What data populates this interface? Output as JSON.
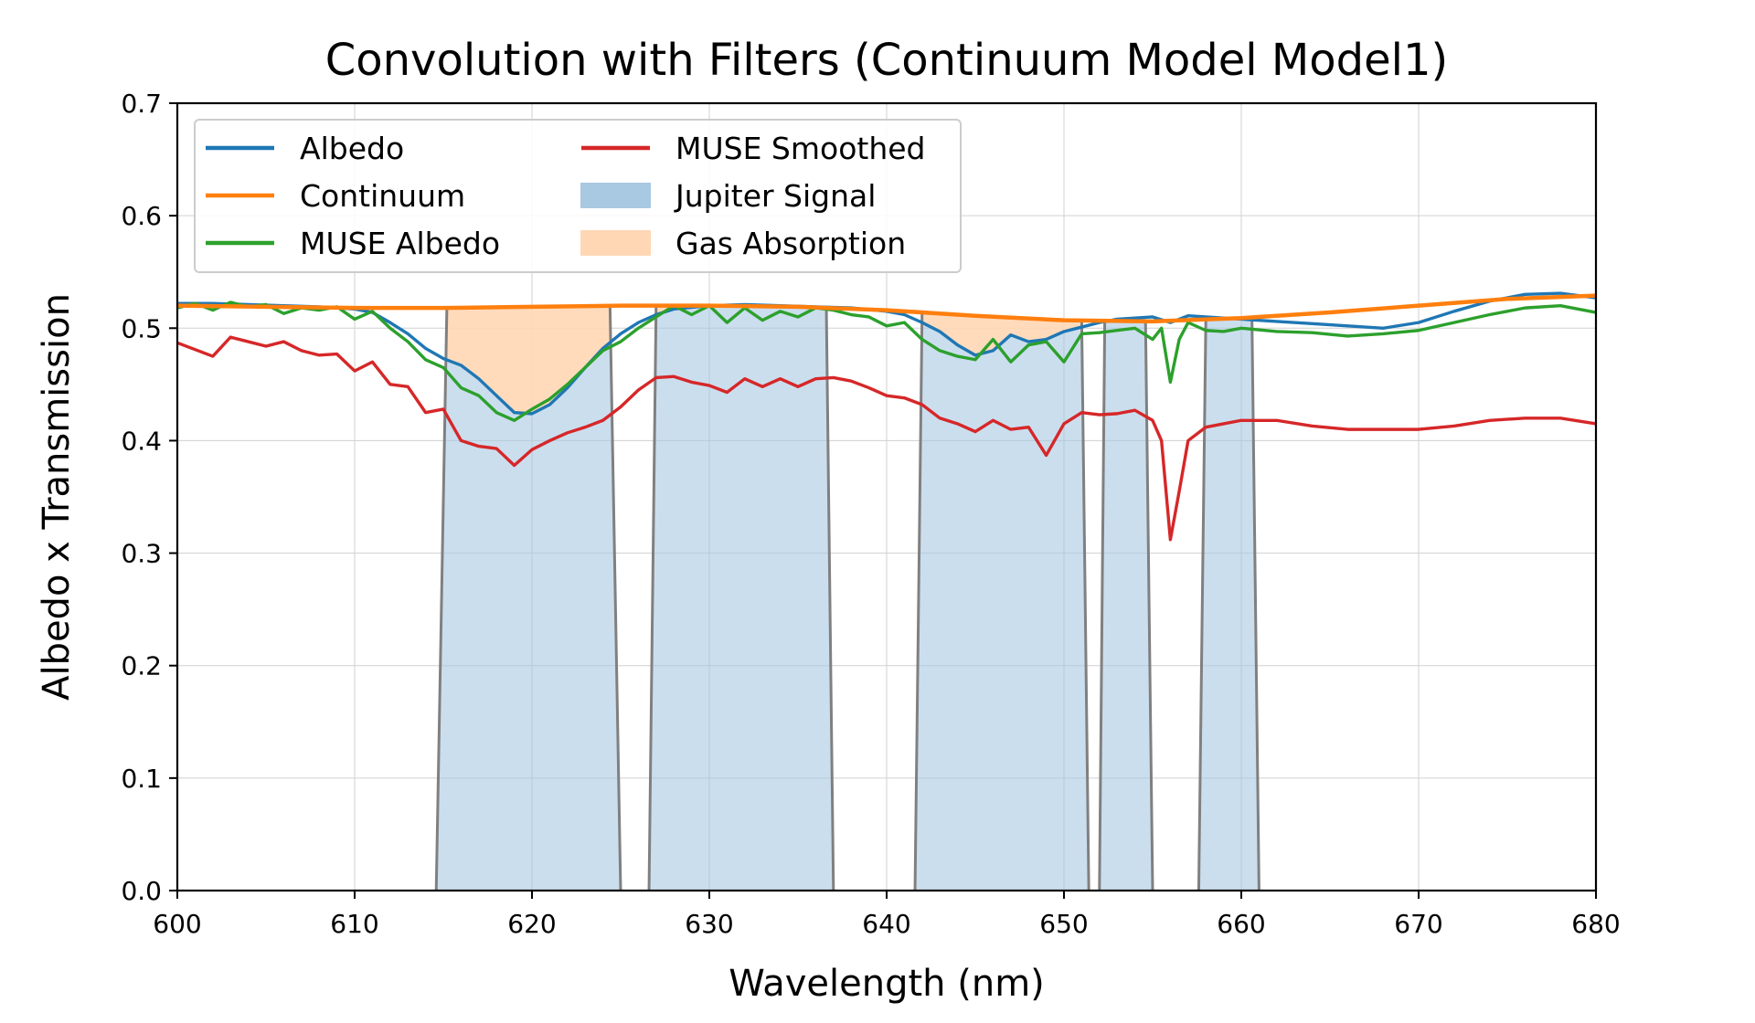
{
  "chart_data": {
    "type": "line",
    "title": "Convolution with Filters (Continuum Model Model1)",
    "xlabel": "Wavelength (nm)",
    "ylabel": "Albedo x Transmission",
    "xlim": [
      600,
      680
    ],
    "ylim": [
      0,
      0.7
    ],
    "xticks": [
      600,
      610,
      620,
      630,
      640,
      650,
      660,
      670,
      680
    ],
    "yticks": [
      0.0,
      0.1,
      0.2,
      0.3,
      0.4,
      0.5,
      0.6,
      0.7
    ],
    "xtick_labels": [
      "600",
      "610",
      "620",
      "630",
      "640",
      "650",
      "660",
      "670",
      "680"
    ],
    "ytick_labels": [
      "0.0",
      "0.1",
      "0.2",
      "0.3",
      "0.4",
      "0.5",
      "0.6",
      "0.7"
    ],
    "grid": true,
    "legend": {
      "placement": "top-left",
      "columns": 2
    },
    "colors": {
      "albedo": "#1f77b4",
      "continuum": "#ff7f0e",
      "muse_albedo": "#2ca02c",
      "muse_smoothed": "#d62728",
      "jupiter_fill": "#a9c8e2",
      "gas_fill": "#ffd7b5",
      "filter_edge": "#808080"
    },
    "series": [
      {
        "name": "Albedo",
        "key": "albedo",
        "x": [
          600,
          602,
          604,
          606,
          608,
          610,
          611,
          612,
          613,
          614,
          615,
          616,
          617,
          618,
          619,
          620,
          621,
          622,
          623,
          624,
          625,
          626,
          627,
          628,
          630,
          632,
          634,
          636,
          638,
          640,
          641,
          642,
          643,
          644,
          645,
          646,
          647,
          648,
          649,
          650,
          651,
          652,
          653,
          654,
          655,
          656,
          657,
          658,
          660,
          662,
          664,
          666,
          668,
          670,
          672,
          674,
          676,
          678,
          680
        ],
        "y": [
          0.522,
          0.522,
          0.521,
          0.52,
          0.519,
          0.517,
          0.514,
          0.505,
          0.495,
          0.482,
          0.473,
          0.467,
          0.455,
          0.44,
          0.425,
          0.424,
          0.432,
          0.447,
          0.465,
          0.482,
          0.495,
          0.505,
          0.512,
          0.517,
          0.52,
          0.521,
          0.52,
          0.519,
          0.518,
          0.515,
          0.512,
          0.505,
          0.497,
          0.485,
          0.476,
          0.48,
          0.494,
          0.488,
          0.49,
          0.497,
          0.501,
          0.505,
          0.508,
          0.509,
          0.51,
          0.505,
          0.511,
          0.51,
          0.508,
          0.506,
          0.504,
          0.502,
          0.5,
          0.505,
          0.515,
          0.524,
          0.53,
          0.531,
          0.527
        ]
      },
      {
        "name": "Continuum",
        "key": "continuum",
        "x": [
          600,
          605,
          610,
          615,
          620,
          625,
          630,
          635,
          640,
          645,
          650,
          655,
          660,
          665,
          670,
          675,
          680
        ],
        "y": [
          0.52,
          0.519,
          0.518,
          0.518,
          0.519,
          0.52,
          0.52,
          0.519,
          0.516,
          0.511,
          0.507,
          0.506,
          0.509,
          0.514,
          0.52,
          0.526,
          0.529
        ]
      },
      {
        "name": "MUSE Albedo",
        "key": "muse_albedo",
        "x": [
          600,
          601,
          602,
          603,
          604,
          605,
          606,
          607,
          608,
          609,
          610,
          611,
          612,
          613,
          614,
          615,
          616,
          617,
          618,
          619,
          620,
          621,
          622,
          623,
          624,
          625,
          626,
          627,
          628,
          629,
          630,
          631,
          632,
          633,
          634,
          635,
          636,
          637,
          638,
          639,
          640,
          641,
          642,
          643,
          644,
          645,
          646,
          647,
          648,
          649,
          650,
          651,
          652,
          653,
          654,
          655,
          655.5,
          656,
          656.5,
          657,
          658,
          659,
          660,
          662,
          664,
          666,
          668,
          670,
          672,
          674,
          676,
          678,
          680
        ],
        "y": [
          0.518,
          0.522,
          0.516,
          0.523,
          0.519,
          0.521,
          0.513,
          0.518,
          0.516,
          0.519,
          0.508,
          0.515,
          0.5,
          0.488,
          0.472,
          0.465,
          0.447,
          0.44,
          0.425,
          0.418,
          0.428,
          0.437,
          0.45,
          0.465,
          0.48,
          0.488,
          0.5,
          0.51,
          0.52,
          0.512,
          0.52,
          0.505,
          0.518,
          0.507,
          0.515,
          0.51,
          0.518,
          0.516,
          0.512,
          0.51,
          0.502,
          0.505,
          0.49,
          0.48,
          0.475,
          0.472,
          0.49,
          0.47,
          0.485,
          0.488,
          0.47,
          0.495,
          0.496,
          0.498,
          0.5,
          0.49,
          0.5,
          0.452,
          0.49,
          0.505,
          0.498,
          0.497,
          0.5,
          0.497,
          0.496,
          0.493,
          0.495,
          0.498,
          0.505,
          0.512,
          0.518,
          0.52,
          0.514
        ]
      },
      {
        "name": "MUSE Smoothed",
        "key": "muse_smoothed",
        "x": [
          600,
          601,
          602,
          603,
          604,
          605,
          606,
          607,
          608,
          609,
          610,
          611,
          612,
          613,
          614,
          615,
          616,
          617,
          618,
          619,
          620,
          621,
          622,
          623,
          624,
          625,
          626,
          627,
          628,
          629,
          630,
          631,
          632,
          633,
          634,
          635,
          636,
          637,
          638,
          639,
          640,
          641,
          642,
          643,
          644,
          645,
          646,
          647,
          648,
          649,
          650,
          651,
          652,
          653,
          654,
          655,
          655.5,
          656,
          656.5,
          657,
          658,
          659,
          660,
          662,
          664,
          666,
          668,
          670,
          672,
          674,
          676,
          678,
          680
        ],
        "y": [
          0.487,
          0.481,
          0.475,
          0.492,
          0.488,
          0.484,
          0.488,
          0.48,
          0.476,
          0.477,
          0.462,
          0.47,
          0.45,
          0.448,
          0.425,
          0.428,
          0.4,
          0.395,
          0.393,
          0.378,
          0.392,
          0.4,
          0.407,
          0.412,
          0.418,
          0.43,
          0.445,
          0.456,
          0.457,
          0.452,
          0.449,
          0.443,
          0.455,
          0.448,
          0.455,
          0.448,
          0.455,
          0.456,
          0.453,
          0.447,
          0.44,
          0.438,
          0.432,
          0.42,
          0.415,
          0.408,
          0.418,
          0.41,
          0.412,
          0.387,
          0.415,
          0.425,
          0.423,
          0.424,
          0.427,
          0.418,
          0.4,
          0.312,
          0.355,
          0.4,
          0.412,
          0.415,
          0.418,
          0.418,
          0.413,
          0.41,
          0.41,
          0.41,
          0.413,
          0.418,
          0.42,
          0.42,
          0.415
        ]
      }
    ],
    "legend_entries": [
      {
        "key": "albedo",
        "label": "Albedo",
        "kind": "line"
      },
      {
        "key": "continuum",
        "label": "Continuum",
        "kind": "line"
      },
      {
        "key": "muse_albedo",
        "label": "MUSE Albedo",
        "kind": "line"
      },
      {
        "key": "muse_smoothed",
        "label": "MUSE Smoothed",
        "kind": "line"
      },
      {
        "key": "jupiter",
        "label": "Jupiter Signal",
        "kind": "patch"
      },
      {
        "key": "gas",
        "label": "Gas Absorption",
        "kind": "patch"
      }
    ],
    "filters": [
      {
        "center": 619.8,
        "bottom": [
          614.6,
          625.0
        ],
        "top": [
          615.2,
          624.4
        ]
      },
      {
        "center": 631.8,
        "bottom": [
          626.6,
          637.0
        ],
        "top": [
          627.0,
          636.6
        ]
      },
      {
        "center": 646.5,
        "bottom": [
          641.6,
          651.4
        ],
        "top": [
          642.0,
          651.0
        ]
      },
      {
        "center": 653.5,
        "bottom": [
          652.0,
          655.0
        ],
        "top": [
          652.3,
          654.6
        ]
      },
      {
        "center": 659.3,
        "bottom": [
          657.6,
          661.0
        ],
        "top": [
          658.0,
          660.6
        ]
      }
    ]
  }
}
